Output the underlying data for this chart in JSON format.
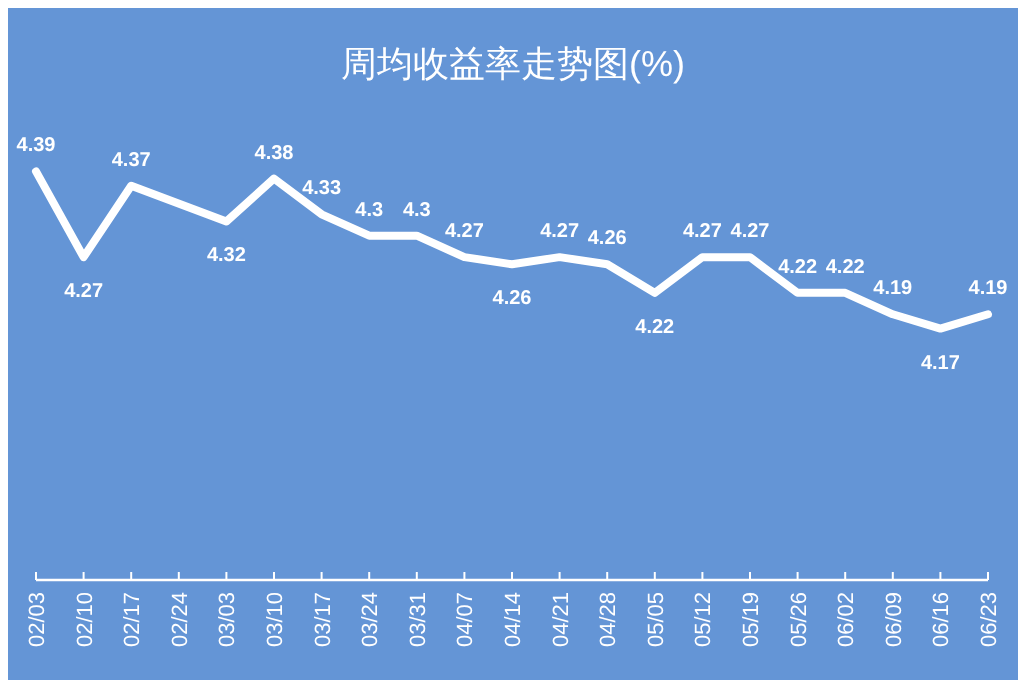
{
  "chart_data": {
    "type": "line",
    "title": "周均收益率走势图(%)",
    "categories": [
      "02/03",
      "02/10",
      "02/17",
      "02/24",
      "03/03",
      "03/10",
      "03/17",
      "03/24",
      "03/31",
      "04/07",
      "04/14",
      "04/21",
      "04/28",
      "05/05",
      "05/12",
      "05/19",
      "05/26",
      "06/02",
      "06/09",
      "06/16",
      "06/23"
    ],
    "series": [
      {
        "color": "#ffffff",
        "values": [
          4.39,
          4.27,
          4.37,
          null,
          4.32,
          4.38,
          4.33,
          4.3,
          4.3,
          4.27,
          4.26,
          4.27,
          4.26,
          4.22,
          4.27,
          4.27,
          4.22,
          4.22,
          4.19,
          4.17,
          4.19
        ]
      }
    ],
    "data_labels": true,
    "grid": false,
    "marker": "none",
    "line_style": "solid"
  }
}
